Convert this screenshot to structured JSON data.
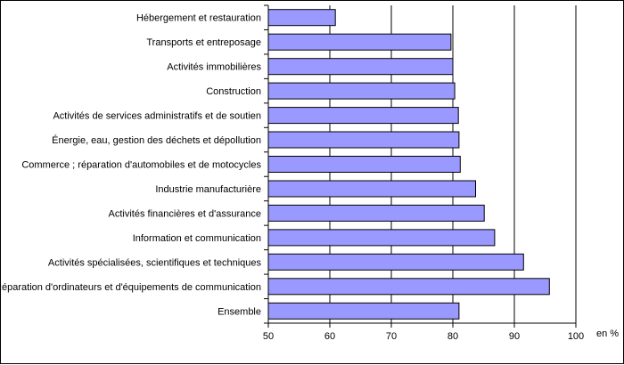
{
  "chart_data": {
    "type": "bar",
    "orientation": "horizontal",
    "categories": [
      "Hébergement et restauration",
      "Transports et entreposage",
      "Activités immobilières",
      "Construction",
      "Activités de services administratifs et de soutien",
      "Énergie, eau, gestion des déchets et dépollution",
      "Commerce ; réparation d'automobiles et de motocycles",
      "Industrie manufacturière",
      "Activités financières et d'assurance",
      "Information et communication",
      "Activités spécialisées, scientifiques et techniques",
      "Réparation d'ordinateurs et d'équipements de communication",
      "Ensemble"
    ],
    "values": [
      60.9,
      79.7,
      80.0,
      80.3,
      80.9,
      81.0,
      81.2,
      83.7,
      85.1,
      86.8,
      91.5,
      95.7,
      81.0
    ],
    "xlim": [
      50,
      100
    ],
    "xticks": [
      50,
      60,
      70,
      80,
      90,
      100
    ],
    "unit_label": "en %",
    "grid": "vertical",
    "colors": {
      "bar_fill": "#9999ff",
      "bar_stroke": "#000000"
    }
  }
}
